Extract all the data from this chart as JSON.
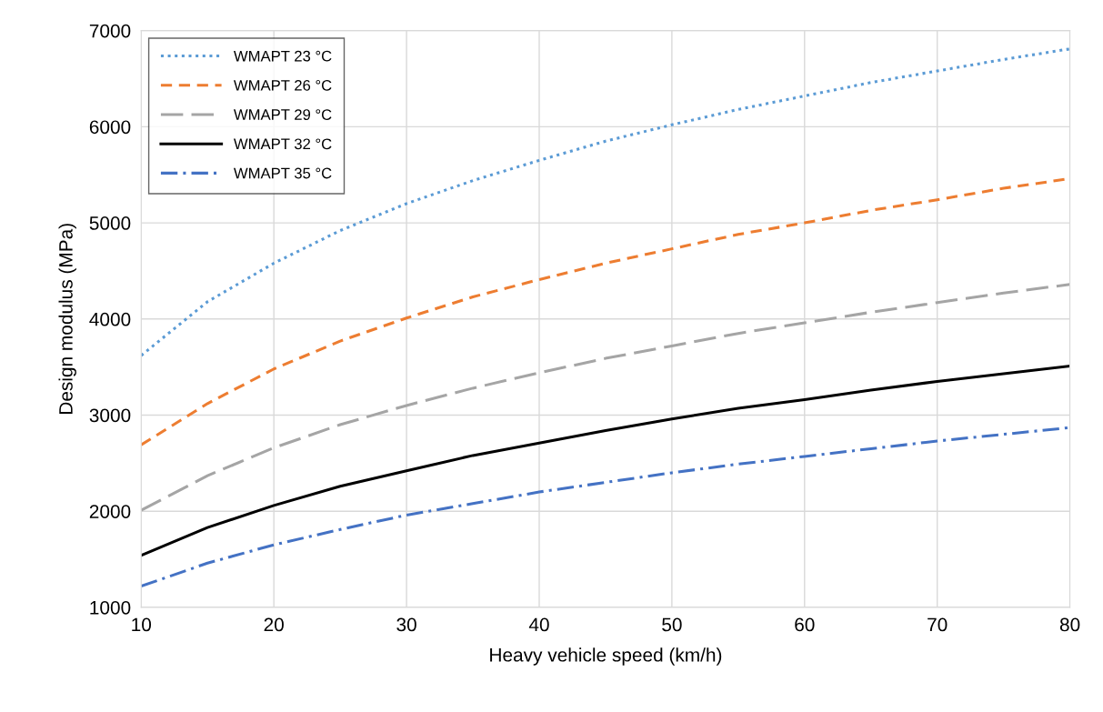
{
  "chart_data": {
    "type": "line",
    "xlabel": "Heavy vehicle speed (km/h)",
    "ylabel": "Design modulus (MPa)",
    "x": [
      10,
      15,
      20,
      25,
      30,
      35,
      40,
      45,
      50,
      55,
      60,
      65,
      70,
      75,
      80
    ],
    "series": [
      {
        "name": "WMAPT 23 °C",
        "color": "#5b9bd5",
        "line_style": "dotted",
        "values": [
          3620,
          4180,
          4580,
          4920,
          5200,
          5440,
          5650,
          5850,
          6020,
          6180,
          6320,
          6460,
          6580,
          6700,
          6810
        ]
      },
      {
        "name": "WMAPT 26 °C",
        "color": "#ed7d31",
        "line_style": "dashed",
        "values": [
          2690,
          3120,
          3480,
          3770,
          4010,
          4230,
          4410,
          4580,
          4730,
          4880,
          5000,
          5130,
          5240,
          5360,
          5460
        ]
      },
      {
        "name": "WMAPT 29 °C",
        "color": "#a5a5a5",
        "line_style": "longdash",
        "values": [
          2010,
          2370,
          2660,
          2900,
          3100,
          3280,
          3440,
          3590,
          3720,
          3850,
          3960,
          4070,
          4170,
          4270,
          4360
        ]
      },
      {
        "name": "WMAPT 32 °C",
        "color": "#000000",
        "line_style": "solid",
        "values": [
          1540,
          1830,
          2060,
          2260,
          2420,
          2580,
          2710,
          2840,
          2960,
          3070,
          3160,
          3260,
          3350,
          3430,
          3510
        ]
      },
      {
        "name": "WMAPT 35 °C",
        "color": "#4472c4",
        "line_style": "dashdot",
        "values": [
          1220,
          1460,
          1650,
          1810,
          1960,
          2080,
          2200,
          2300,
          2400,
          2490,
          2570,
          2650,
          2730,
          2800,
          2870
        ]
      }
    ],
    "xlim": [
      10,
      80
    ],
    "xticks": [
      10,
      20,
      30,
      40,
      50,
      60,
      70,
      80
    ],
    "ylim": [
      1000,
      7000
    ],
    "yticks": [
      1000,
      2000,
      3000,
      4000,
      5000,
      6000,
      7000
    ],
    "grid": true,
    "legend": "top left",
    "marker": "none"
  }
}
